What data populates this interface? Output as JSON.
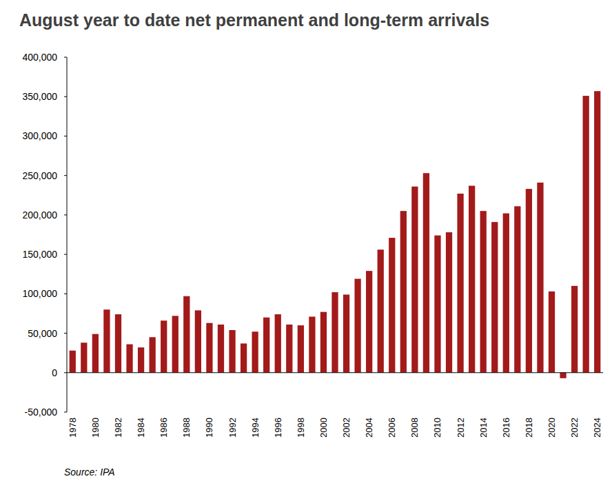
{
  "chart_data": {
    "type": "bar",
    "title": "August year to date net permanent and long-term arrivals",
    "source": "Source: IPA",
    "categories": [
      "1978",
      null,
      "1980",
      null,
      "1982",
      null,
      "1984",
      null,
      "1986",
      null,
      "1988",
      null,
      "1990",
      null,
      "1992",
      null,
      "1994",
      null,
      "1996",
      null,
      "1998",
      null,
      "2000",
      null,
      "2002",
      null,
      "2004",
      null,
      "2006",
      null,
      "2008",
      null,
      "2010",
      null,
      "2012",
      null,
      "2014",
      null,
      "2016",
      null,
      "2018",
      null,
      "2020",
      null,
      "2022",
      null,
      "2024"
    ],
    "values": [
      28000,
      38000,
      49000,
      80000,
      74000,
      36000,
      32000,
      45000,
      66000,
      72000,
      97000,
      79000,
      63000,
      61000,
      54000,
      37000,
      52000,
      70000,
      74000,
      61000,
      60000,
      71000,
      77000,
      102000,
      99000,
      119000,
      129000,
      156000,
      171000,
      205000,
      236000,
      253000,
      174000,
      178000,
      227000,
      237000,
      205000,
      191000,
      202000,
      211000,
      233000,
      241000,
      103000,
      -7000,
      110000,
      351000,
      357000
    ],
    "color": "#a31a1a",
    "ylim": [
      -50000,
      400000
    ],
    "yticks": [
      {
        "value": -50000,
        "label": "-50,000"
      },
      0,
      {
        "value": 50000,
        "label": "50,000"
      },
      {
        "value": 100000,
        "label": "100,000"
      },
      {
        "value": 150000,
        "label": "150,000"
      },
      {
        "value": 200000,
        "label": "200,000"
      },
      {
        "value": 250000,
        "label": "250,000"
      },
      {
        "value": 300000,
        "label": "300,000"
      },
      {
        "value": 350000,
        "label": "350,000"
      },
      {
        "value": 400000,
        "label": "400,000"
      }
    ],
    "grid": false
  }
}
